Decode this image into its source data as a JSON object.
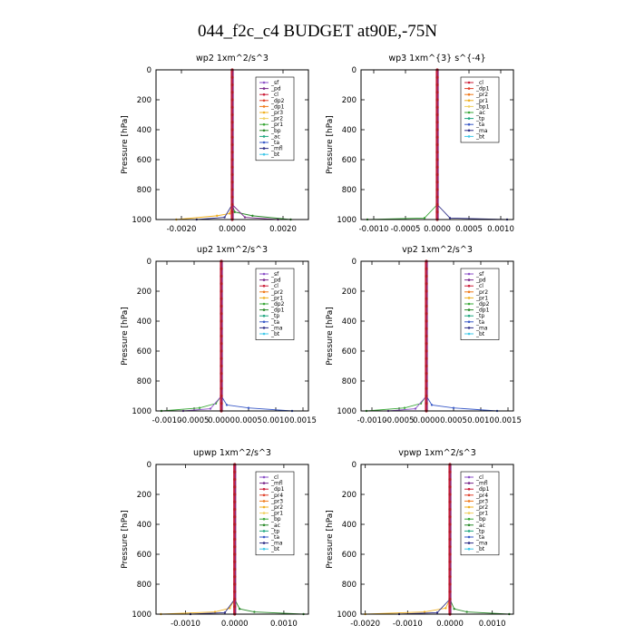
{
  "figure_title": "044_f2c_c4  BUDGET at90E,-75N",
  "chart_data": [
    {
      "type": "line",
      "title": "wp2   1xm^2/s^3",
      "ylabel": "Pressure [hPa]",
      "ylim": [
        0,
        1000
      ],
      "xlim": [
        -0.003,
        0.003
      ],
      "xticks": [
        "-0.0020",
        "0.0000",
        "0.0020"
      ],
      "xtick_values": [
        -0.002,
        0.0,
        0.002
      ],
      "yticks": [
        0,
        200,
        400,
        600,
        800,
        1000
      ],
      "legend": [
        "_sf",
        "_pd",
        "_cl",
        "_dp2",
        "_dp1",
        "_pr3",
        "_pr2",
        "_pr1",
        "_bp",
        "_ac",
        "_ta",
        "_mfl",
        "_bt"
      ],
      "colors": [
        "#8c52c8",
        "#7a2a8c",
        "#cc1f3a",
        "#e0412b",
        "#f07a1a",
        "#f0b020",
        "#f0d060",
        "#3aa838",
        "#2a8a2a",
        "#20a880",
        "#3a5ac8",
        "#303088",
        "#40c8e8"
      ],
      "bottom_excursions": [
        [
          -0.0022,
          1000,
          -0.0006,
          975,
          -0.0001,
          960
        ],
        [
          0.0023,
          1000,
          0.0008,
          975,
          0.0001,
          950
        ],
        [
          -0.0014,
          1000,
          -0.0003,
          985
        ],
        [
          0.0018,
          1000,
          0.0005,
          985
        ]
      ]
    },
    {
      "type": "line",
      "title": "wp3   1xm^{3} s^{-4}",
      "ylabel": "Pressure [hPa]",
      "ylim": [
        0,
        1000
      ],
      "xlim": [
        -0.0012,
        0.0012
      ],
      "xticks": [
        "-0.0010",
        "-0.0005",
        "0.0000",
        "0.0005",
        "0.0010"
      ],
      "xtick_values": [
        -0.001,
        -0.0005,
        0.0,
        0.0005,
        0.001
      ],
      "yticks": [
        0,
        200,
        400,
        600,
        800,
        1000
      ],
      "legend": [
        "_cl",
        "_dp1",
        "_pr2",
        "_pr1",
        "_bp1",
        "_ac",
        "_tp",
        "_ta",
        "_ma",
        "_bt"
      ],
      "colors": [
        "#cc1f3a",
        "#e0412b",
        "#f07a1a",
        "#f0b020",
        "#f0d060",
        "#3aa838",
        "#20a880",
        "#3a5ac8",
        "#303088",
        "#40c8e8"
      ],
      "bottom_excursions": [
        [
          -0.0011,
          1000,
          -0.0002,
          990
        ],
        [
          0.0011,
          1000,
          0.0002,
          990
        ]
      ]
    },
    {
      "type": "line",
      "title": "up2   1xm^2/s^3",
      "ylabel": "Pressure [hPa]",
      "ylim": [
        0,
        1000
      ],
      "xlim": [
        -0.0012,
        0.0016
      ],
      "xticks": [
        "-0.0010",
        "-0.0005",
        "0.0000",
        "0.0005",
        "0.0010",
        "0.0015"
      ],
      "xtick_values": [
        -0.001,
        -0.0005,
        0.0,
        0.0005,
        0.001,
        0.0015
      ],
      "yticks": [
        0,
        200,
        400,
        600,
        800,
        1000
      ],
      "legend": [
        "_sf",
        "_pd",
        "_cl",
        "_pr2",
        "_pr1",
        "_dp2",
        "_dp1",
        "_tp",
        "_ta",
        "_ma",
        "_bt"
      ],
      "colors": [
        "#8c52c8",
        "#7a2a8c",
        "#cc1f3a",
        "#f07a1a",
        "#f0b020",
        "#3aa838",
        "#2a8a2a",
        "#20a880",
        "#3a5ac8",
        "#303088",
        "#40c8e8"
      ],
      "bottom_excursions": [
        [
          -0.0011,
          1000,
          -0.0004,
          980,
          -0.0001,
          950
        ],
        [
          0.0013,
          1000,
          0.0005,
          980,
          0.0001,
          960
        ],
        [
          -0.0007,
          1000,
          -0.0002,
          985
        ]
      ]
    },
    {
      "type": "line",
      "title": "vp2   1xm^2/s^3",
      "ylabel": "Pressure [hPa]",
      "ylim": [
        0,
        1000
      ],
      "xlim": [
        -0.0012,
        0.0016
      ],
      "xticks": [
        "-0.0010",
        "-0.0005",
        "0.0000",
        "0.0005",
        "0.0010",
        "0.0015"
      ],
      "xtick_values": [
        -0.001,
        -0.0005,
        0.0,
        0.0005,
        0.001,
        0.0015
      ],
      "yticks": [
        0,
        200,
        400,
        600,
        800,
        1000
      ],
      "legend": [
        "_sf",
        "_pd",
        "_cl",
        "_pr2",
        "_pr1",
        "_dp2",
        "_dp1",
        "_tp",
        "_ta",
        "_ma",
        "_bt"
      ],
      "colors": [
        "#8c52c8",
        "#7a2a8c",
        "#cc1f3a",
        "#f07a1a",
        "#f0b020",
        "#3aa838",
        "#2a8a2a",
        "#20a880",
        "#3a5ac8",
        "#303088",
        "#40c8e8"
      ],
      "bottom_excursions": [
        [
          -0.0011,
          1000,
          -0.0004,
          980,
          -0.0001,
          950
        ],
        [
          0.0013,
          1000,
          0.0005,
          980,
          0.0001,
          960
        ],
        [
          -0.0007,
          1000,
          -0.0002,
          985
        ]
      ]
    },
    {
      "type": "line",
      "title": "upwp   1xm^2/s^3",
      "ylabel": "Pressure [hPa]",
      "ylim": [
        0,
        1000
      ],
      "xlim": [
        -0.0016,
        0.0015
      ],
      "xticks": [
        "-0.0010",
        "0.0000",
        "0.0010"
      ],
      "xtick_values": [
        -0.001,
        0.0,
        0.001
      ],
      "yticks": [
        0,
        200,
        400,
        600,
        800,
        1000
      ],
      "legend": [
        "_cl",
        "_mfl",
        "_dp1",
        "_pr4",
        "_pr3",
        "_pr2",
        "_pr1",
        "_bp",
        "_ac",
        "_tp",
        "_ta",
        "_ma",
        "_bt"
      ],
      "colors": [
        "#8c52c8",
        "#7a2a8c",
        "#cc1f3a",
        "#e0412b",
        "#f07a1a",
        "#f0b020",
        "#f0d060",
        "#3aa838",
        "#2a8a2a",
        "#20a880",
        "#3a5ac8",
        "#303088",
        "#40c8e8"
      ],
      "bottom_excursions": [
        [
          -0.0015,
          1000,
          -0.0004,
          985,
          -0.0001,
          960
        ],
        [
          0.0014,
          1000,
          0.0004,
          985,
          0.0001,
          965
        ],
        [
          -0.0009,
          1000,
          -0.0002,
          990
        ]
      ]
    },
    {
      "type": "line",
      "title": "vpwp   1xm^2/s^3",
      "ylabel": "Pressure [hPa]",
      "ylim": [
        0,
        1000
      ],
      "xlim": [
        -0.0021,
        0.0015
      ],
      "xticks": [
        "-0.0020",
        "-0.0010",
        "0.0000",
        "0.0010"
      ],
      "xtick_values": [
        -0.002,
        -0.001,
        0.0,
        0.001
      ],
      "yticks": [
        0,
        200,
        400,
        600,
        800,
        1000
      ],
      "legend": [
        "_cl",
        "_mfl",
        "_dp1",
        "_pr4",
        "_pr3",
        "_pr2",
        "_pr1",
        "_bp",
        "_ac",
        "_tp",
        "_ta",
        "_ma",
        "_bt"
      ],
      "colors": [
        "#8c52c8",
        "#7a2a8c",
        "#cc1f3a",
        "#e0412b",
        "#f07a1a",
        "#f0b020",
        "#f0d060",
        "#3aa838",
        "#2a8a2a",
        "#20a880",
        "#3a5ac8",
        "#303088",
        "#40c8e8"
      ],
      "bottom_excursions": [
        [
          -0.002,
          1000,
          -0.0006,
          985,
          -0.0001,
          960
        ],
        [
          0.0014,
          1000,
          0.0004,
          985,
          0.0001,
          965
        ],
        [
          -0.0012,
          1000,
          -0.0003,
          990
        ]
      ]
    }
  ]
}
